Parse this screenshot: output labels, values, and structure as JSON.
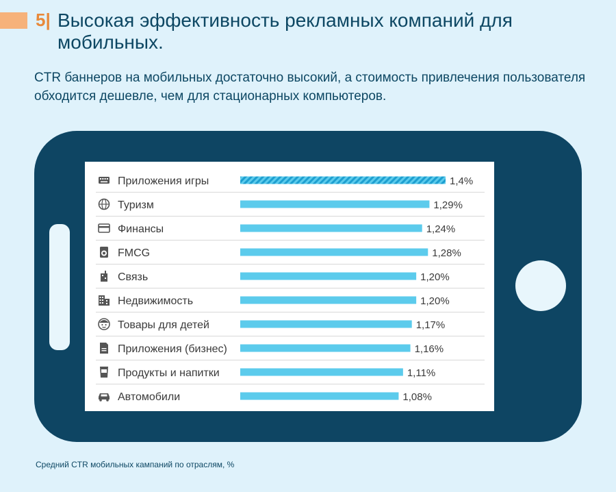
{
  "header": {
    "number": "5|",
    "title": "Высокая эффективность рекламных компаний для мобильных.",
    "subtitle": "CTR баннеров на мобильных достаточно высокий, а стоимость привлечения пользователя обходится дешевле, чем для стационарных компьютеров."
  },
  "caption": "Средний CTR мобильных кампаний по отраслям, %",
  "colors": {
    "bar": "#5ccbec",
    "bar_highlight_stripe": "#1d9fd0",
    "phone_body": "#0e4563",
    "text_dark": "#0d4763",
    "row_label": "#3a3a3a",
    "accent": "#e8893a"
  },
  "chart_data": {
    "type": "bar",
    "orientation": "horizontal",
    "title": "",
    "categories": [
      "Приложения игры",
      "Туризм",
      "Финансы",
      "FMCG",
      "Связь",
      "Недвижимость",
      "Товары для детей",
      "Приложения (бизнес)",
      "Продукты и напитки",
      "Автомобили"
    ],
    "values": [
      1.4,
      1.29,
      1.24,
      1.28,
      1.2,
      1.2,
      1.17,
      1.16,
      1.11,
      1.08
    ],
    "value_labels": [
      "1,4%",
      "1,29%",
      "1,24%",
      "1,28%",
      "1,20%",
      "1,20%",
      "1,17%",
      "1,16%",
      "1,11%",
      "1,08%"
    ],
    "icons": [
      "keyboard-icon",
      "globe-icon",
      "credit-card-icon",
      "washing-machine-icon",
      "building-signal-icon",
      "apartment-building-icon",
      "child-face-icon",
      "document-icon",
      "cup-icon",
      "car-icon"
    ],
    "highlight_index": 0,
    "xlim": [
      0,
      1.4
    ],
    "grid": false,
    "legend": "none"
  }
}
